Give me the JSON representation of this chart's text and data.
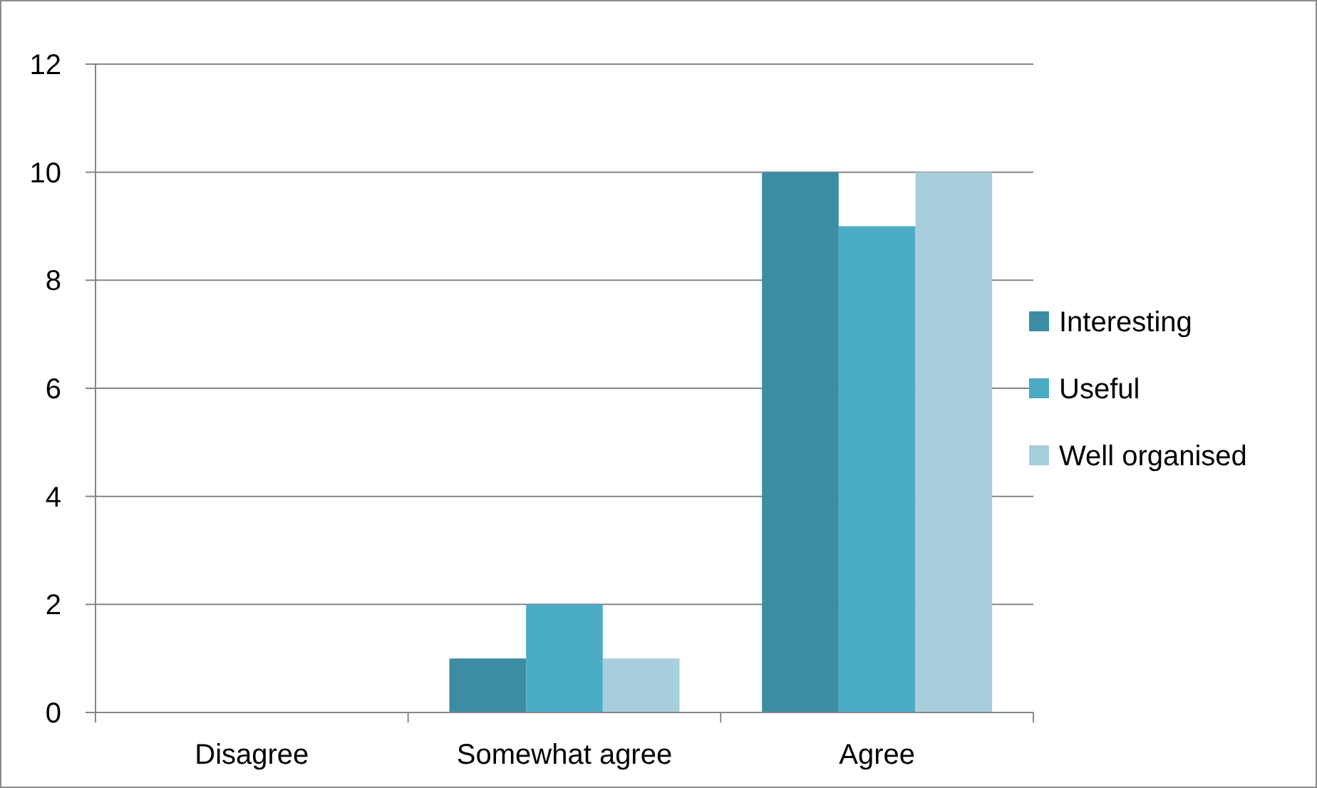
{
  "chart_data": {
    "type": "bar",
    "categories": [
      "Disagree",
      "Somewhat agree",
      "Agree"
    ],
    "series": [
      {
        "name": "Interesting",
        "color": "#3c8da3",
        "values": [
          0,
          1,
          10
        ]
      },
      {
        "name": "Useful",
        "color": "#4bacc6",
        "values": [
          0,
          2,
          9
        ]
      },
      {
        "name": "Well organised",
        "color": "#a8cedc",
        "values": [
          0,
          1,
          10
        ]
      }
    ],
    "ylim": [
      0,
      12
    ],
    "yticks": [
      0,
      2,
      4,
      6,
      8,
      10,
      12
    ],
    "grid": "y",
    "legend": "right"
  }
}
